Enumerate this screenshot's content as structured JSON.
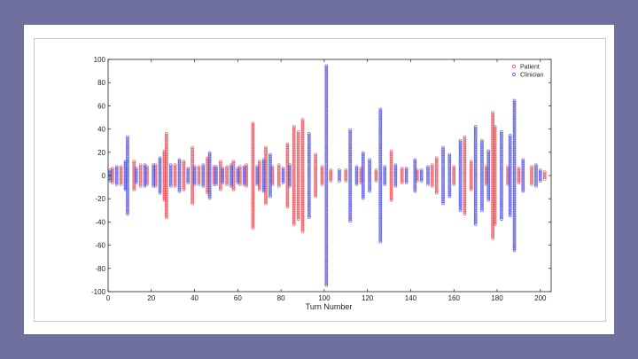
{
  "chart_data": {
    "type": "scatter",
    "title": "",
    "xlabel": "Turn Number",
    "ylabel": "",
    "xlim": [
      0,
      205
    ],
    "ylim": [
      -100,
      100
    ],
    "xticks": [
      0,
      20,
      40,
      60,
      80,
      100,
      120,
      140,
      160,
      180,
      200
    ],
    "yticks": [
      100,
      80,
      60,
      40,
      20,
      0,
      -20,
      -40,
      -60,
      -80,
      -100
    ],
    "grid": false,
    "legend_position": "top-right",
    "marker": "open-circle",
    "series": [
      {
        "name": "Patient",
        "color": "#e8474f",
        "turns": [
          {
            "x": 2,
            "amp": 6
          },
          {
            "x": 6,
            "amp": 8
          },
          {
            "x": 12,
            "amp": 12
          },
          {
            "x": 15,
            "amp": 9
          },
          {
            "x": 18,
            "amp": 8
          },
          {
            "x": 22,
            "amp": 10
          },
          {
            "x": 26,
            "amp": 22
          },
          {
            "x": 27,
            "amp": 37
          },
          {
            "x": 31,
            "amp": 10
          },
          {
            "x": 35,
            "amp": 12
          },
          {
            "x": 39,
            "amp": 25
          },
          {
            "x": 42,
            "amp": 8
          },
          {
            "x": 46,
            "amp": 15
          },
          {
            "x": 49,
            "amp": 8
          },
          {
            "x": 52,
            "amp": 12
          },
          {
            "x": 55,
            "amp": 8
          },
          {
            "x": 58,
            "amp": 12
          },
          {
            "x": 61,
            "amp": 8
          },
          {
            "x": 64,
            "amp": 10
          },
          {
            "x": 67,
            "amp": 45
          },
          {
            "x": 70,
            "amp": 12
          },
          {
            "x": 73,
            "amp": 25
          },
          {
            "x": 76,
            "amp": 8
          },
          {
            "x": 79,
            "amp": 10
          },
          {
            "x": 83,
            "amp": 28
          },
          {
            "x": 86,
            "amp": 42
          },
          {
            "x": 88,
            "amp": 38
          },
          {
            "x": 90,
            "amp": 48
          },
          {
            "x": 96,
            "amp": 18
          },
          {
            "x": 99,
            "amp": 8
          },
          {
            "x": 103,
            "amp": 5
          },
          {
            "x": 110,
            "amp": 5
          },
          {
            "x": 117,
            "amp": 6
          },
          {
            "x": 124,
            "amp": 5
          },
          {
            "x": 131,
            "amp": 22
          },
          {
            "x": 136,
            "amp": 6
          },
          {
            "x": 143,
            "amp": 5
          },
          {
            "x": 150,
            "amp": 10
          },
          {
            "x": 152,
            "amp": 15
          },
          {
            "x": 160,
            "amp": 8
          },
          {
            "x": 165,
            "amp": 34
          },
          {
            "x": 168,
            "amp": 12
          },
          {
            "x": 175,
            "amp": 8
          },
          {
            "x": 178,
            "amp": 54
          },
          {
            "x": 179,
            "amp": 42
          },
          {
            "x": 185,
            "amp": 8
          },
          {
            "x": 190,
            "amp": 6
          },
          {
            "x": 196,
            "amp": 8
          },
          {
            "x": 202,
            "amp": 4
          }
        ]
      },
      {
        "name": "Clinician",
        "color": "#4a4ae0",
        "turns": [
          {
            "x": 1,
            "amp": 5
          },
          {
            "x": 4,
            "amp": 8
          },
          {
            "x": 8,
            "amp": 12
          },
          {
            "x": 9,
            "amp": 34
          },
          {
            "x": 13,
            "amp": 6
          },
          {
            "x": 17,
            "amp": 10
          },
          {
            "x": 21,
            "amp": 9
          },
          {
            "x": 24,
            "amp": 16
          },
          {
            "x": 29,
            "amp": 10
          },
          {
            "x": 33,
            "amp": 14
          },
          {
            "x": 37,
            "amp": 6
          },
          {
            "x": 40,
            "amp": 8
          },
          {
            "x": 44,
            "amp": 10
          },
          {
            "x": 47,
            "amp": 20
          },
          {
            "x": 50,
            "amp": 8
          },
          {
            "x": 53,
            "amp": 6
          },
          {
            "x": 57,
            "amp": 10
          },
          {
            "x": 60,
            "amp": 6
          },
          {
            "x": 63,
            "amp": 8
          },
          {
            "x": 69,
            "amp": 8
          },
          {
            "x": 72,
            "amp": 14
          },
          {
            "x": 75,
            "amp": 18
          },
          {
            "x": 81,
            "amp": 6
          },
          {
            "x": 84,
            "amp": 10
          },
          {
            "x": 93,
            "amp": 37
          },
          {
            "x": 101,
            "amp": 95
          },
          {
            "x": 107,
            "amp": 5
          },
          {
            "x": 112,
            "amp": 40
          },
          {
            "x": 115,
            "amp": 8
          },
          {
            "x": 118,
            "amp": 20
          },
          {
            "x": 121,
            "amp": 14
          },
          {
            "x": 126,
            "amp": 57
          },
          {
            "x": 128,
            "amp": 8
          },
          {
            "x": 133,
            "amp": 10
          },
          {
            "x": 138,
            "amp": 6
          },
          {
            "x": 142,
            "amp": 14
          },
          {
            "x": 145,
            "amp": 5
          },
          {
            "x": 148,
            "amp": 8
          },
          {
            "x": 155,
            "amp": 25
          },
          {
            "x": 158,
            "amp": 18
          },
          {
            "x": 163,
            "amp": 30
          },
          {
            "x": 170,
            "amp": 42
          },
          {
            "x": 173,
            "amp": 30
          },
          {
            "x": 176,
            "amp": 22
          },
          {
            "x": 182,
            "amp": 38
          },
          {
            "x": 186,
            "amp": 35
          },
          {
            "x": 188,
            "amp": 65
          },
          {
            "x": 192,
            "amp": 14
          },
          {
            "x": 198,
            "amp": 10
          },
          {
            "x": 200,
            "amp": 5
          }
        ]
      }
    ]
  }
}
